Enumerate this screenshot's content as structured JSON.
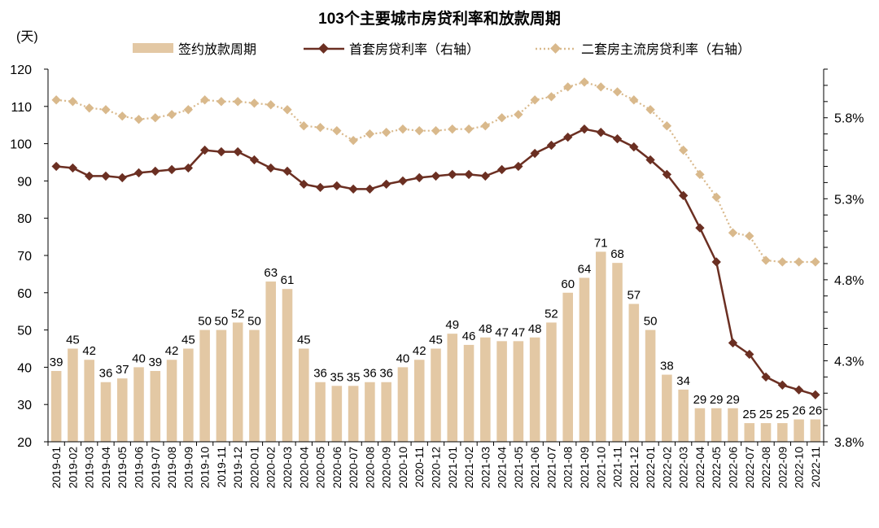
{
  "chart_data": {
    "type": "bar+line",
    "title": "103个主要城市房贷利率和放款周期",
    "left_axis_unit": "(天)",
    "left_axis": {
      "min": 20,
      "max": 120,
      "ticks": [
        "20",
        "30",
        "40",
        "50",
        "60",
        "70",
        "80",
        "90",
        "100",
        "110",
        "120"
      ]
    },
    "right_axis": {
      "min": 3.8,
      "max": 6.1,
      "ticks": [
        "3.8%",
        "4.3%",
        "4.8%",
        "5.3%",
        "5.8%"
      ],
      "tick_values": [
        3.8,
        4.3,
        4.8,
        5.3,
        5.8
      ]
    },
    "categories": [
      "2019-01",
      "2019-02",
      "2019-03",
      "2019-04",
      "2019-05",
      "2019-06",
      "2019-07",
      "2019-08",
      "2019-09",
      "2019-10",
      "2019-11",
      "2019-12",
      "2020-01",
      "2020-02",
      "2020-03",
      "2020-04",
      "2020-05",
      "2020-06",
      "2020-07",
      "2020-08",
      "2020-09",
      "2020-10",
      "2020-11",
      "2020-12",
      "2021-01",
      "2021-02",
      "2021-03",
      "2021-04",
      "2021-05",
      "2021-06",
      "2021-07",
      "2021-08",
      "2021-09",
      "2021-10",
      "2021-11",
      "2021-12",
      "2022-01",
      "2022-02",
      "2022-03",
      "2022-04",
      "2022-05",
      "2022-06",
      "2022-07",
      "2022-08",
      "2022-09",
      "2022-10",
      "2022-11"
    ],
    "series": [
      {
        "name": "签约放款周期",
        "axis": "left",
        "kind": "bar",
        "color": "#e3c8a4",
        "values": [
          39,
          45,
          42,
          36,
          37,
          40,
          39,
          42,
          45,
          50,
          50,
          52,
          50,
          63,
          61,
          45,
          36,
          35,
          35,
          36,
          36,
          40,
          42,
          45,
          49,
          46,
          48,
          47,
          47,
          48,
          52,
          60,
          64,
          71,
          68,
          57,
          50,
          38,
          34,
          29,
          29,
          29,
          25,
          25,
          25,
          26,
          26
        ]
      },
      {
        "name": "首套房贷利率（右轴）",
        "axis": "right",
        "kind": "line",
        "color": "#6b2f22",
        "values": [
          5.5,
          5.49,
          5.44,
          5.44,
          5.43,
          5.46,
          5.47,
          5.48,
          5.49,
          5.6,
          5.59,
          5.59,
          5.54,
          5.49,
          5.47,
          5.39,
          5.37,
          5.38,
          5.36,
          5.36,
          5.39,
          5.41,
          5.43,
          5.44,
          5.45,
          5.45,
          5.44,
          5.48,
          5.5,
          5.58,
          5.63,
          5.68,
          5.73,
          5.71,
          5.67,
          5.62,
          5.54,
          5.45,
          5.32,
          5.12,
          4.91,
          4.41,
          4.34,
          4.2,
          4.15,
          4.12,
          4.09
        ]
      },
      {
        "name": "二套房主流房贷利率（右轴）",
        "axis": "right",
        "kind": "dotted-line",
        "color": "#d9b98c",
        "values": [
          5.91,
          5.9,
          5.86,
          5.85,
          5.81,
          5.79,
          5.8,
          5.82,
          5.85,
          5.91,
          5.9,
          5.9,
          5.89,
          5.88,
          5.85,
          5.75,
          5.74,
          5.72,
          5.66,
          5.7,
          5.71,
          5.73,
          5.72,
          5.72,
          5.73,
          5.73,
          5.75,
          5.8,
          5.82,
          5.91,
          5.93,
          5.99,
          6.02,
          5.99,
          5.96,
          5.91,
          5.85,
          5.75,
          5.6,
          5.45,
          5.31,
          5.09,
          5.07,
          4.92,
          4.91,
          4.91,
          4.91
        ]
      }
    ]
  }
}
